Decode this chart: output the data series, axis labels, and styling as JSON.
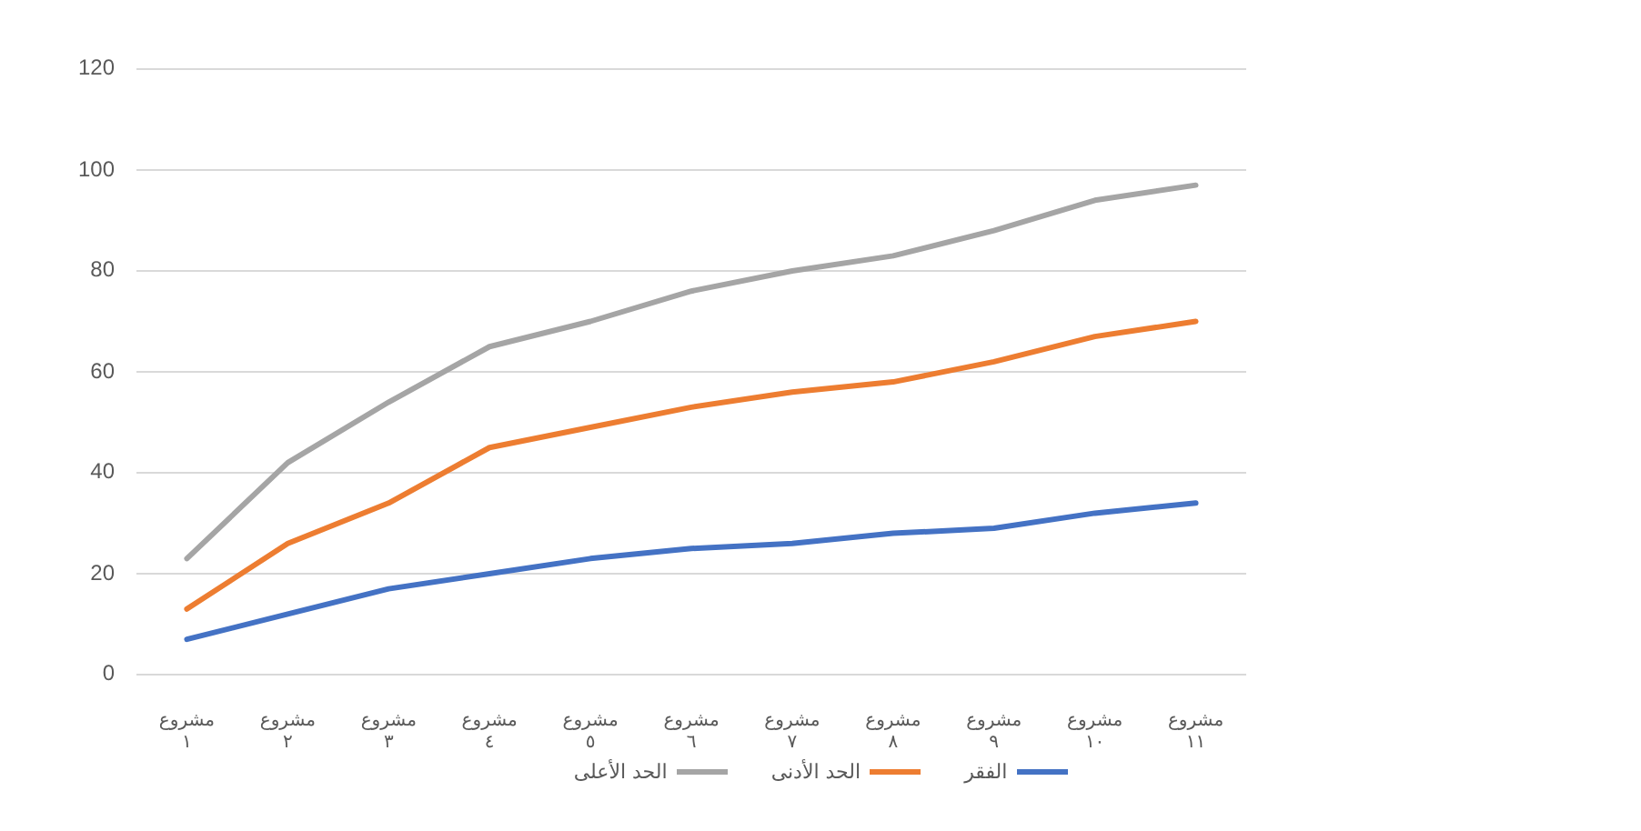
{
  "chart_data": {
    "type": "line",
    "categories": [
      "مشروع ١",
      "مشروع ٢",
      "مشروع ٣",
      "مشروع ٤",
      "مشروع ٥",
      "مشروع ٦",
      "مشروع ٧",
      "مشروع ٨",
      "مشروع ٩",
      "مشروع ١٠",
      "مشروع ١١"
    ],
    "series": [
      {
        "name": "الحد الأعلى",
        "color": "#a5a5a5",
        "values": [
          23,
          42,
          54,
          65,
          70,
          76,
          80,
          83,
          88,
          94,
          97
        ]
      },
      {
        "name": "الحد الأدنى",
        "color": "#ed7d31",
        "values": [
          13,
          26,
          34,
          45,
          49,
          53,
          56,
          58,
          62,
          67,
          70
        ]
      },
      {
        "name": "الفقر",
        "color": "#4472c4",
        "values": [
          7,
          12,
          17,
          20,
          23,
          25,
          26,
          28,
          29,
          32,
          34
        ]
      }
    ],
    "ylim": [
      0,
      120
    ],
    "yticks": [
      0,
      20,
      40,
      60,
      80,
      100,
      120
    ],
    "grid": "y",
    "legend": "bottom",
    "marker": "none",
    "line_style": "solid"
  }
}
